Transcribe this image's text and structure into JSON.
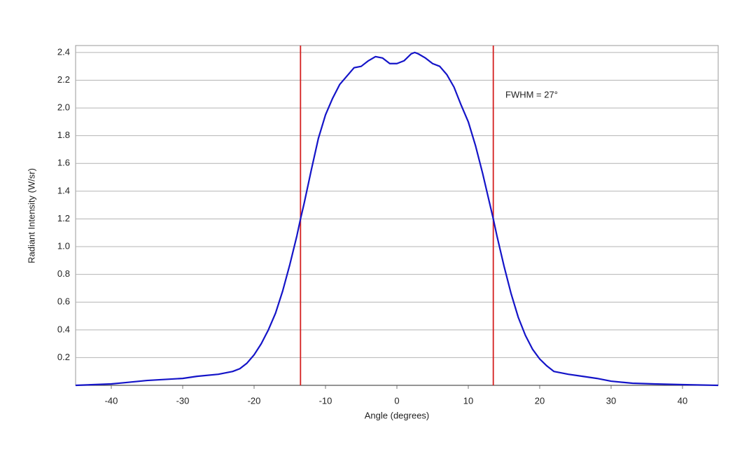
{
  "chart_data": {
    "type": "line",
    "x_label": "Angle (degrees)",
    "y_label": "Radiant Intensity (W/sr)",
    "x": [
      -45,
      -40,
      -38,
      -35,
      -30,
      -28,
      -25,
      -23,
      -22,
      -21,
      -20,
      -19,
      -18,
      -17,
      -16,
      -15,
      -14,
      -13.5,
      -13,
      -12,
      -11,
      -10,
      -9,
      -8,
      -7,
      -6,
      -5,
      -4,
      -3,
      -2,
      -1,
      0,
      1,
      2,
      2.5,
      3,
      4,
      5,
      6,
      7,
      8,
      9,
      10,
      11,
      12,
      13,
      13.5,
      14,
      15,
      16,
      17,
      18,
      19,
      20,
      21,
      22,
      24,
      26,
      28,
      30,
      33,
      36,
      40,
      45
    ],
    "values": [
      0.0,
      0.01,
      0.02,
      0.035,
      0.05,
      0.065,
      0.08,
      0.1,
      0.12,
      0.16,
      0.22,
      0.3,
      0.4,
      0.52,
      0.68,
      0.87,
      1.08,
      1.2,
      1.31,
      1.55,
      1.78,
      1.95,
      2.07,
      2.17,
      2.23,
      2.29,
      2.3,
      2.34,
      2.37,
      2.36,
      2.32,
      2.32,
      2.34,
      2.39,
      2.4,
      2.39,
      2.36,
      2.32,
      2.3,
      2.24,
      2.15,
      2.02,
      1.9,
      1.73,
      1.53,
      1.31,
      1.2,
      1.08,
      0.86,
      0.66,
      0.49,
      0.36,
      0.26,
      0.19,
      0.14,
      0.1,
      0.08,
      0.065,
      0.05,
      0.03,
      0.015,
      0.01,
      0.005,
      0.0
    ],
    "color": "#1414c8",
    "vlines": {
      "values": [
        -13.5,
        13.5
      ],
      "color": "#d42020"
    },
    "annotation": "FWHM = 27°",
    "xlim": [
      -45,
      45
    ],
    "xticks": [
      -40,
      -30,
      -20,
      -10,
      0,
      10,
      20,
      30,
      40
    ],
    "ylim": [
      0,
      2.45
    ],
    "yticks": [
      0.2,
      0.4,
      0.6,
      0.8,
      {
        "value": 1,
        "label": "1.0"
      },
      1.2,
      1.4,
      1.6,
      1.8,
      {
        "value": 2,
        "label": "2.0"
      },
      2.2,
      2.4
    ],
    "grid": true
  }
}
